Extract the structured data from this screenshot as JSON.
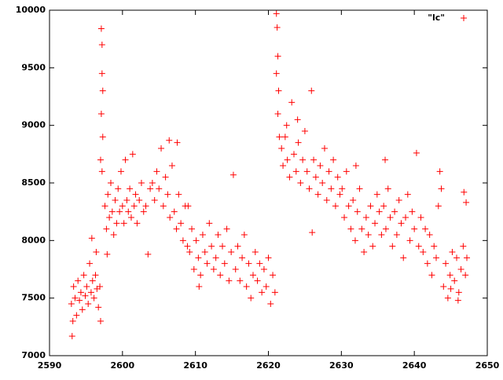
{
  "chart_data": {
    "type": "scatter",
    "xlim": [
      2590,
      2650
    ],
    "xticks": [
      2590,
      2600,
      2610,
      2620,
      2630,
      2640,
      2650
    ],
    "ylim": [
      7000,
      10000
    ],
    "yticks": [
      7000,
      7500,
      8000,
      8500,
      9000,
      9500,
      10000
    ],
    "legend": "upper right",
    "x": [
      2593.0,
      2593.2,
      2593.3,
      2593.5,
      2593.7,
      2593.9,
      2594.1,
      2594.3,
      2594.5,
      2594.7,
      2594.9,
      2595.1,
      2595.3,
      2595.5,
      2595.7,
      2595.9,
      2596.1,
      2596.3,
      2596.5,
      2596.7,
      2596.9,
      2597.0,
      2593.1,
      2595.8,
      2596.4,
      2597.1,
      2597.2,
      2597.2,
      2597.3,
      2597.1,
      2597.3,
      2597.0,
      2597.2,
      2597.6,
      2597.8,
      2598.0,
      2598.2,
      2598.4,
      2598.6,
      2598.8,
      2599.0,
      2599.2,
      2599.4,
      2599.6,
      2599.8,
      2600.0,
      2600.2,
      2600.4,
      2600.6,
      2600.8,
      2601.0,
      2601.2,
      2601.4,
      2601.6,
      2601.8,
      2602.0,
      2602.3,
      2602.6,
      2602.9,
      2603.2,
      2603.5,
      2603.8,
      2597.9,
      2604.1,
      2604.4,
      2604.7,
      2605.0,
      2605.3,
      2605.6,
      2605.9,
      2606.2,
      2606.5,
      2606.8,
      2607.1,
      2607.4,
      2607.7,
      2608.0,
      2608.3,
      2608.6,
      2608.9,
      2606.4,
      2607.5,
      2609.2,
      2609.5,
      2609.8,
      2610.1,
      2610.4,
      2610.7,
      2611.0,
      2611.3,
      2611.6,
      2611.9,
      2612.2,
      2612.5,
      2612.8,
      2613.1,
      2613.4,
      2613.7,
      2614.0,
      2614.3,
      2614.6,
      2614.9,
      2615.2,
      2615.5,
      2615.8,
      2616.1,
      2616.4,
      2616.7,
      2617.0,
      2617.3,
      2617.6,
      2617.9,
      2618.2,
      2618.5,
      2618.8,
      2619.1,
      2619.4,
      2619.7,
      2620.0,
      2620.3,
      2620.6,
      2620.9,
      2609.0,
      2610.5,
      2621.1,
      2621.2,
      2621.3,
      2621.1,
      2621.4,
      2621.3,
      2621.5,
      2621.8,
      2622.0,
      2622.3,
      2622.6,
      2622.9,
      2623.2,
      2623.5,
      2623.8,
      2624.1,
      2624.4,
      2624.7,
      2625.0,
      2625.3,
      2625.6,
      2625.9,
      2626.2,
      2626.5,
      2626.8,
      2627.1,
      2627.4,
      2627.7,
      2628.0,
      2628.3,
      2628.6,
      2628.9,
      2629.2,
      2629.5,
      2629.8,
      2626.0,
      2624.0,
      2622.5,
      2630.1,
      2630.4,
      2630.7,
      2631.0,
      2631.3,
      2631.6,
      2631.9,
      2632.2,
      2632.5,
      2632.8,
      2633.1,
      2633.4,
      2633.7,
      2634.0,
      2634.3,
      2634.6,
      2634.9,
      2635.2,
      2635.5,
      2635.8,
      2636.1,
      2636.4,
      2636.7,
      2637.0,
      2637.3,
      2637.6,
      2637.9,
      2638.2,
      2638.5,
      2638.8,
      2639.1,
      2639.4,
      2639.7,
      2640.0,
      2640.3,
      2640.6,
      2640.9,
      2641.2,
      2641.5,
      2641.8,
      2642.1,
      2642.4,
      2642.7,
      2643.0,
      2643.3,
      2643.5,
      2643.7,
      2632.0,
      2636.0,
      2644.0,
      2644.3,
      2644.6,
      2644.9,
      2645.2,
      2645.5,
      2645.8,
      2646.1,
      2646.4,
      2646.7,
      2647.0,
      2647.2,
      2646.8,
      2647.1,
      2645.0,
      2646.0
    ],
    "series": [
      {
        "name": "\"lc\"",
        "color": "#ff0000",
        "values": [
          7450,
          7300,
          7600,
          7500,
          7350,
          7650,
          7480,
          7550,
          7400,
          7700,
          7520,
          7600,
          7450,
          7800,
          7550,
          7650,
          7500,
          7700,
          7580,
          7420,
          7600,
          7300,
          7170,
          8020,
          7900,
          9840,
          9700,
          9450,
          9300,
          9100,
          8900,
          8700,
          8600,
          8300,
          8100,
          8400,
          8200,
          8500,
          8250,
          8050,
          8350,
          8150,
          8450,
          8250,
          8600,
          8300,
          8150,
          8700,
          8350,
          8250,
          8450,
          8200,
          8750,
          8300,
          8400,
          8150,
          8350,
          8500,
          8250,
          8300,
          7880,
          8450,
          7880,
          8500,
          8350,
          8600,
          8450,
          8800,
          8300,
          8550,
          8400,
          8200,
          8650,
          8250,
          8100,
          8400,
          8150,
          8000,
          8300,
          7950,
          8870,
          8850,
          7900,
          8100,
          7750,
          8000,
          7850,
          7700,
          8050,
          7900,
          7800,
          8150,
          7950,
          7750,
          7850,
          8050,
          7700,
          7950,
          7800,
          8100,
          7650,
          7900,
          8570,
          7750,
          7950,
          7650,
          7850,
          8050,
          7600,
          7800,
          7500,
          7700,
          7900,
          7650,
          7800,
          7550,
          7750,
          7600,
          7850,
          7450,
          7700,
          7550,
          8300,
          7600,
          9970,
          9850,
          9600,
          9450,
          9300,
          9100,
          8900,
          8800,
          8650,
          8900,
          8700,
          8550,
          9200,
          8750,
          8600,
          8850,
          8500,
          8700,
          8950,
          8600,
          8450,
          9300,
          8700,
          8550,
          8400,
          8650,
          8500,
          8800,
          8350,
          8600,
          8450,
          8700,
          8300,
          8550,
          8400,
          8070,
          9050,
          9000,
          8450,
          8200,
          8600,
          8300,
          8100,
          8350,
          8000,
          8250,
          8450,
          8100,
          7900,
          8200,
          8050,
          8300,
          7950,
          8150,
          8400,
          8250,
          8050,
          8300,
          8100,
          8450,
          8200,
          7950,
          8250,
          8050,
          8350,
          8150,
          7850,
          8200,
          8400,
          8000,
          8250,
          8100,
          8760,
          7950,
          8200,
          7900,
          8100,
          7800,
          8050,
          7700,
          7950,
          7850,
          8300,
          8600,
          8450,
          8650,
          8700,
          7600,
          7800,
          7500,
          7700,
          7900,
          7650,
          7850,
          7550,
          7750,
          7950,
          7700,
          7850,
          8420,
          8330,
          7580,
          7480
        ]
      }
    ]
  }
}
